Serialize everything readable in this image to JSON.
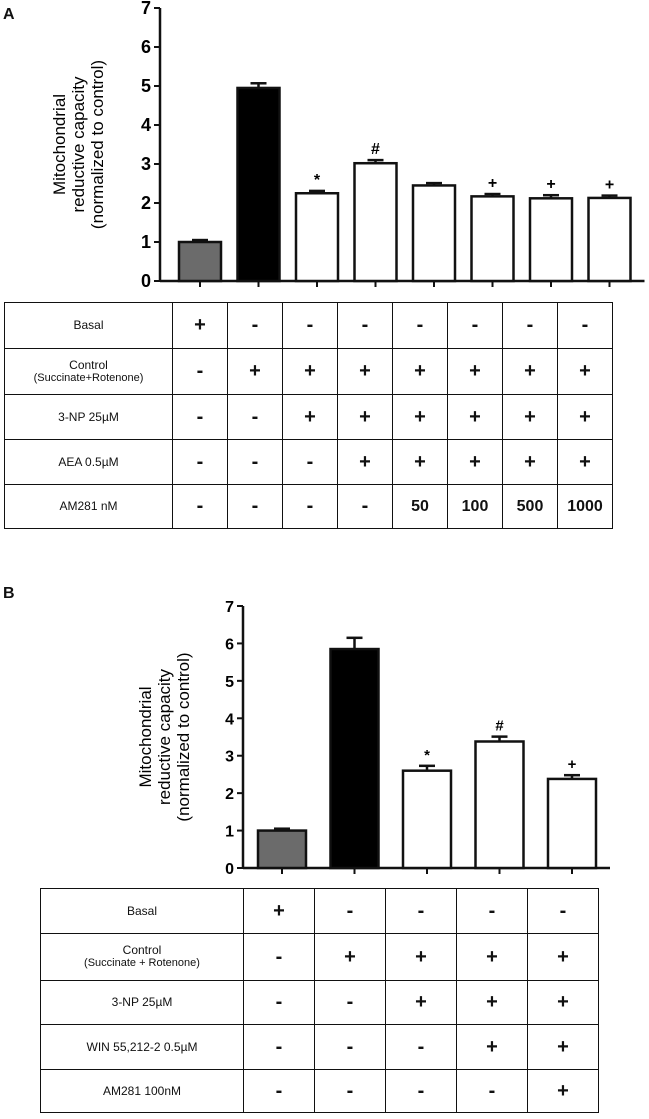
{
  "chart_data": [
    {
      "type": "bar",
      "panel": "A",
      "ylabel_lines": [
        "Mitochondrial",
        "reductive capacity",
        "(normalized to control)"
      ],
      "ylim": [
        0,
        7
      ],
      "yticks": [
        "0",
        "1",
        "2",
        "3",
        "4",
        "5",
        "6",
        "7"
      ],
      "values": [
        1.0,
        4.95,
        2.25,
        3.02,
        2.45,
        2.17,
        2.12,
        2.13
      ],
      "errors": [
        0.05,
        0.12,
        0.06,
        0.08,
        0.06,
        0.06,
        0.08,
        0.06
      ],
      "bar_colors": [
        "#6b6b6b",
        "#000000",
        "#ffffff",
        "#ffffff",
        "#ffffff",
        "#ffffff",
        "#ffffff",
        "#ffffff"
      ],
      "annotations": [
        "",
        "",
        "*",
        "#",
        "",
        "+",
        "+",
        "+"
      ],
      "condition_table": {
        "rows": [
          {
            "label": "Basal",
            "values": [
              "+",
              "-",
              "-",
              "-",
              "-",
              "-",
              "-",
              "-"
            ]
          },
          {
            "label": "Control",
            "sublabel": "(Succinate+Rotenone)",
            "values": [
              "-",
              "+",
              "+",
              "+",
              "+",
              "+",
              "+",
              "+"
            ]
          },
          {
            "label": "3-NP 25µM",
            "values": [
              "-",
              "-",
              "+",
              "+",
              "+",
              "+",
              "+",
              "+"
            ]
          },
          {
            "label": "AEA 0.5µM",
            "values": [
              "-",
              "-",
              "-",
              "+",
              "+",
              "+",
              "+",
              "+"
            ]
          },
          {
            "label": "AM281 nM",
            "values": [
              "-",
              "-",
              "-",
              "-",
              "50",
              "100",
              "500",
              "1000"
            ]
          }
        ]
      }
    },
    {
      "type": "bar",
      "panel": "B",
      "ylabel_lines": [
        "Mitochondrial",
        "reductive capacity",
        "(normalized to control)"
      ],
      "ylim": [
        0,
        7
      ],
      "yticks": [
        "0",
        "1",
        "2",
        "3",
        "4",
        "5",
        "6",
        "7"
      ],
      "values": [
        1.0,
        5.85,
        2.6,
        3.38,
        2.38
      ],
      "errors": [
        0.05,
        0.3,
        0.13,
        0.13,
        0.1
      ],
      "bar_colors": [
        "#6b6b6b",
        "#000000",
        "#ffffff",
        "#ffffff",
        "#ffffff"
      ],
      "annotations": [
        "",
        "",
        "*",
        "#",
        "+"
      ],
      "condition_table": {
        "rows": [
          {
            "label": "Basal",
            "values": [
              "+",
              "-",
              "-",
              "-",
              "-"
            ]
          },
          {
            "label": "Control",
            "sublabel": "(Succinate + Rotenone)",
            "values": [
              "-",
              "+",
              "+",
              "+",
              "+"
            ]
          },
          {
            "label": "3-NP 25µM",
            "values": [
              "-",
              "-",
              "+",
              "+",
              "+"
            ]
          },
          {
            "label": "WIN 55,212-2 0.5µM",
            "values": [
              "-",
              "-",
              "-",
              "+",
              "+"
            ]
          },
          {
            "label": "AM281 100nM",
            "values": [
              "-",
              "-",
              "-",
              "-",
              "+"
            ]
          }
        ]
      }
    }
  ]
}
